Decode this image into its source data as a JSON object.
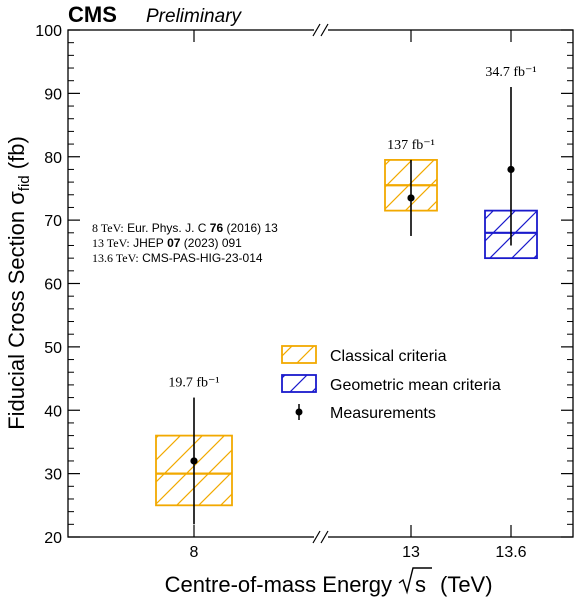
{
  "chart_data": {
    "type": "scatter",
    "experiment": "CMS",
    "status": "Preliminary",
    "xlabel": "Centre-of-mass Energy",
    "xlabel_sqrt": "s",
    "xlabel_unit": "(TeV)",
    "ylabel": "Fiducial Cross Section",
    "ylabel_symbol": "σ",
    "ylabel_sub": "fid",
    "ylabel_unit": "(fb)",
    "ylim": [
      20,
      100
    ],
    "y_major_ticks": [
      20,
      30,
      40,
      50,
      60,
      70,
      80,
      90,
      100
    ],
    "categories": [
      "8",
      "13",
      "13.6"
    ],
    "axis_break": true,
    "legend_position": "center-right",
    "colors": {
      "classical": "#f2a900",
      "geometric": "#1a1acc",
      "measurement": "#000000"
    },
    "predictions": [
      {
        "category": "8",
        "criteria": "Classical criteria",
        "central": 30,
        "low": 25,
        "high": 36
      },
      {
        "category": "13",
        "criteria": "Classical criteria",
        "central": 75.5,
        "low": 71.5,
        "high": 79.5
      },
      {
        "category": "13.6",
        "criteria": "Geometric mean criteria",
        "central": 68,
        "low": 64,
        "high": 71.5
      }
    ],
    "measurements": [
      {
        "category": "8",
        "value": 32,
        "low": 22,
        "high": 42,
        "luminosity": "19.7 fb⁻¹"
      },
      {
        "category": "13",
        "value": 73.5,
        "low": 67.5,
        "high": 79.5,
        "luminosity": "137 fb⁻¹"
      },
      {
        "category": "13.6",
        "value": 78,
        "low": 66,
        "high": 91,
        "luminosity": "34.7 fb⁻¹"
      }
    ],
    "legend": [
      "Classical criteria",
      "Geometric mean criteria",
      "Measurements"
    ],
    "references": [
      {
        "energy": "8 TeV:",
        "plain1": "Eur. Phys. J. C",
        "bold": "76",
        "plain2": "(2016) 13"
      },
      {
        "energy": "13 TeV:",
        "plain1": "JHEP",
        "bold": "07",
        "plain2": "(2023) 091"
      },
      {
        "energy": "13.6 TeV:",
        "plain1": "CMS-PAS-HIG-23-014",
        "bold": "",
        "plain2": ""
      }
    ]
  }
}
